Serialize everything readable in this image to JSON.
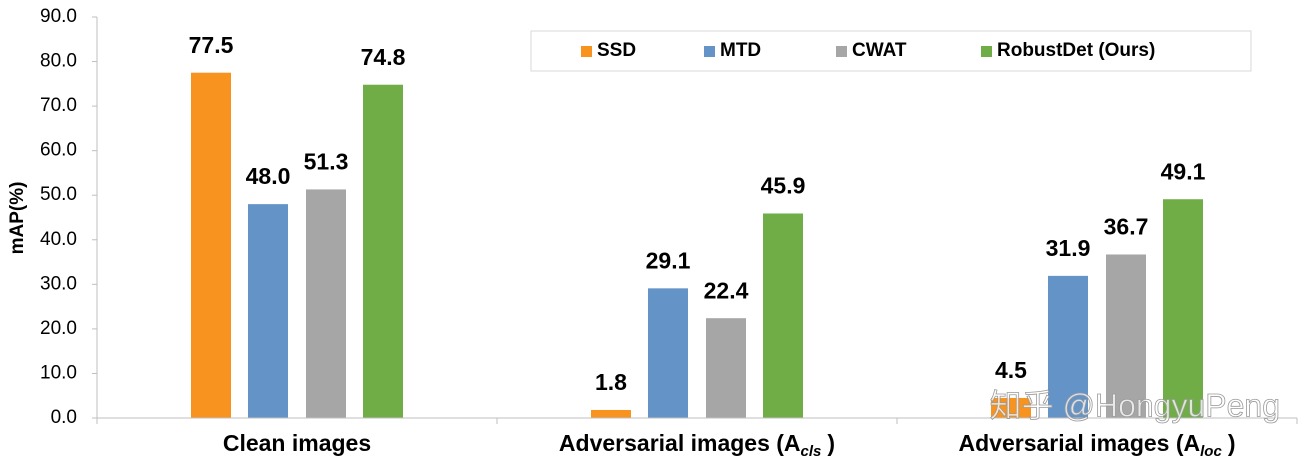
{
  "chart_data": {
    "type": "bar",
    "y_label": "mAP(%)",
    "categories": [
      {
        "text": "Clean images"
      },
      {
        "text": "Adversarial images (A",
        "sub": "cls",
        "tail": ")"
      },
      {
        "text": "Adversarial images (A",
        "sub": "loc",
        "tail": ")"
      }
    ],
    "series": [
      {
        "name": "SSD",
        "color": "#f7931e",
        "values": [
          77.5,
          1.8,
          4.5
        ],
        "value_labels": [
          "77.5",
          "1.8",
          "4.5"
        ]
      },
      {
        "name": "MTD",
        "color": "#6493c7",
        "values": [
          48.0,
          29.1,
          31.9
        ],
        "value_labels": [
          "48.0",
          "29.1",
          "31.9"
        ]
      },
      {
        "name": "CWAT",
        "color": "#a6a6a6",
        "values": [
          51.3,
          22.4,
          36.7
        ],
        "value_labels": [
          "51.3",
          "22.4",
          "36.7"
        ]
      },
      {
        "name": "RobustDet (Ours)",
        "color": "#70ad47",
        "values": [
          74.8,
          45.9,
          49.1
        ],
        "value_labels": [
          "74.8",
          "45.9",
          "49.1"
        ]
      }
    ],
    "ylim": [
      0,
      90
    ],
    "yticks": [
      {
        "value": 0,
        "label": "0.0"
      },
      {
        "value": 10,
        "label": "10.0"
      },
      {
        "value": 20,
        "label": "20.0"
      },
      {
        "value": 30,
        "label": "30.0"
      },
      {
        "value": 40,
        "label": "40.0"
      },
      {
        "value": 50,
        "label": "50.0"
      },
      {
        "value": 60,
        "label": "60.0"
      },
      {
        "value": 70,
        "label": "70.0"
      },
      {
        "value": 80,
        "label": "80.0"
      },
      {
        "value": 90,
        "label": "90.0"
      }
    ],
    "grid": false,
    "legend": "top-right",
    "watermark": "知乎 @HongyuPeng"
  }
}
